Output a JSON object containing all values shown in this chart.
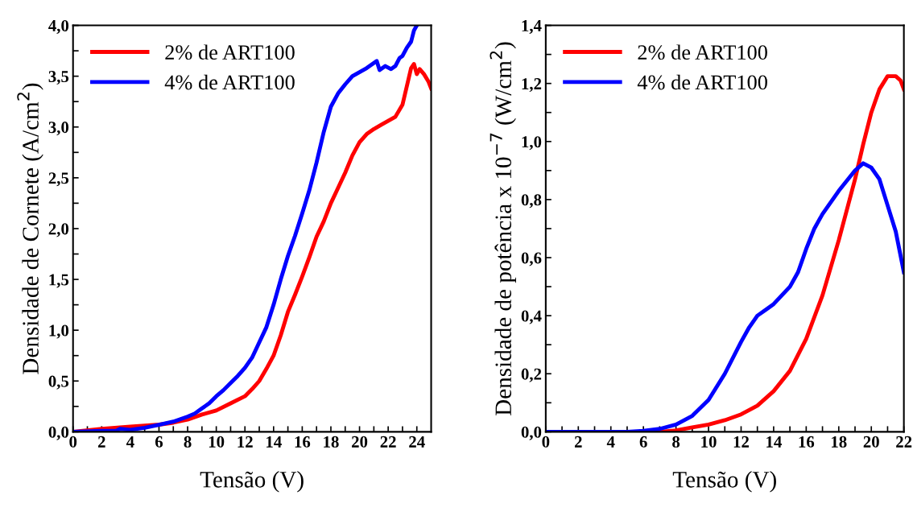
{
  "chart_data": [
    {
      "type": "line",
      "xlabel": "Tensão (V)",
      "ylabel": "Densidade de Cornete (A/cm$^{2}$)",
      "legend": "top left",
      "grid": false,
      "line_style": "solid",
      "marker": "none",
      "xlim": [
        0,
        25
      ],
      "ylim": [
        0,
        4
      ],
      "xticks": [
        0,
        {
          "value": 1,
          "label": null
        },
        2,
        {
          "value": 3,
          "label": null
        },
        4,
        {
          "value": 5,
          "label": null
        },
        6,
        {
          "value": 7,
          "label": null
        },
        8,
        {
          "value": 9,
          "label": null
        },
        10,
        {
          "value": 11,
          "label": null
        },
        12,
        {
          "value": 13,
          "label": null
        },
        14,
        {
          "value": 15,
          "label": null
        },
        16,
        {
          "value": 17,
          "label": null
        },
        18,
        {
          "value": 19,
          "label": null
        },
        20,
        {
          "value": 21,
          "label": null
        },
        22,
        {
          "value": 23,
          "label": null
        },
        24
      ],
      "yticks": [
        {
          "value": 0,
          "label": "0,0"
        },
        {
          "value": 0.25,
          "label": null
        },
        {
          "value": 0.5,
          "label": "0,5"
        },
        {
          "value": 0.75,
          "label": null
        },
        {
          "value": 1,
          "label": "1,0"
        },
        {
          "value": 1.25,
          "label": null
        },
        {
          "value": 1.5,
          "label": "1,5"
        },
        {
          "value": 1.75,
          "label": null
        },
        {
          "value": 2,
          "label": "2,0"
        },
        {
          "value": 2.25,
          "label": null
        },
        {
          "value": 2.5,
          "label": "2,5"
        },
        {
          "value": 2.75,
          "label": null
        },
        {
          "value": 3,
          "label": "3,0"
        },
        {
          "value": 3.25,
          "label": null
        },
        {
          "value": 3.5,
          "label": "3,5"
        },
        {
          "value": 3.75,
          "label": null
        },
        {
          "value": 4,
          "label": "4,0"
        }
      ],
      "series": [
        {
          "name": "2% de ART100",
          "color": "#ff0000",
          "x": [
            0,
            2,
            4,
            6,
            7,
            8,
            9,
            10,
            11,
            12,
            12.5,
            13,
            13.5,
            14,
            14.5,
            15,
            15.5,
            16,
            16.5,
            17,
            17.5,
            18,
            18.5,
            19,
            19.5,
            20,
            20.5,
            21,
            21.5,
            22,
            22.5,
            23,
            23.3,
            23.6,
            23.8,
            24.0,
            24.2,
            24.5,
            24.8,
            25
          ],
          "values": [
            0.0,
            0.03,
            0.05,
            0.07,
            0.09,
            0.12,
            0.17,
            0.21,
            0.28,
            0.35,
            0.42,
            0.5,
            0.62,
            0.75,
            0.95,
            1.18,
            1.35,
            1.53,
            1.72,
            1.92,
            2.07,
            2.25,
            2.4,
            2.55,
            2.72,
            2.85,
            2.93,
            2.98,
            3.02,
            3.06,
            3.1,
            3.22,
            3.4,
            3.58,
            3.62,
            3.52,
            3.57,
            3.52,
            3.45,
            3.38
          ]
        },
        {
          "name": "4% de ART100",
          "color": "#0000ff",
          "x": [
            0,
            2,
            3,
            3.3,
            4,
            5,
            6,
            7,
            8,
            8.5,
            9,
            9.5,
            10,
            10.5,
            11,
            11.5,
            12,
            12.5,
            13,
            13.5,
            14,
            14.5,
            15,
            15.5,
            16,
            16.5,
            17,
            17.5,
            18,
            18.5,
            19,
            19.5,
            20,
            20.5,
            21,
            21.2,
            21.4,
            21.8,
            22.2,
            22.5,
            22.8,
            23,
            23.3,
            23.6,
            23.8,
            24
          ],
          "values": [
            0.0,
            0.01,
            0.01,
            0.03,
            0.02,
            0.04,
            0.07,
            0.1,
            0.15,
            0.18,
            0.23,
            0.28,
            0.35,
            0.41,
            0.48,
            0.55,
            0.63,
            0.73,
            0.88,
            1.03,
            1.25,
            1.5,
            1.73,
            1.93,
            2.15,
            2.38,
            2.65,
            2.95,
            3.2,
            3.33,
            3.42,
            3.5,
            3.54,
            3.58,
            3.63,
            3.65,
            3.56,
            3.6,
            3.57,
            3.6,
            3.68,
            3.7,
            3.78,
            3.84,
            3.95,
            4.0
          ]
        }
      ]
    },
    {
      "type": "line",
      "xlabel": "Tensão (V)",
      "ylabel": "Densidade de potência x 10$^{−7}$ (W/cm$^{2}$)",
      "legend": "top left",
      "grid": false,
      "line_style": "solid",
      "marker": "none",
      "xlim": [
        0,
        22
      ],
      "ylim": [
        0,
        1.4
      ],
      "xticks": [
        0,
        {
          "value": 1,
          "label": null
        },
        2,
        {
          "value": 3,
          "label": null
        },
        4,
        {
          "value": 5,
          "label": null
        },
        6,
        {
          "value": 7,
          "label": null
        },
        8,
        {
          "value": 9,
          "label": null
        },
        10,
        {
          "value": 11,
          "label": null
        },
        12,
        {
          "value": 13,
          "label": null
        },
        14,
        {
          "value": 15,
          "label": null
        },
        16,
        {
          "value": 17,
          "label": null
        },
        18,
        {
          "value": 19,
          "label": null
        },
        20,
        {
          "value": 21,
          "label": null
        },
        22
      ],
      "yticks": [
        {
          "value": 0,
          "label": "0,0"
        },
        {
          "value": 0.1,
          "label": null
        },
        {
          "value": 0.2,
          "label": "0,2"
        },
        {
          "value": 0.3,
          "label": null
        },
        {
          "value": 0.4,
          "label": "0,4"
        },
        {
          "value": 0.5,
          "label": null
        },
        {
          "value": 0.6,
          "label": "0,6"
        },
        {
          "value": 0.7,
          "label": null
        },
        {
          "value": 0.8,
          "label": "0,8"
        },
        {
          "value": 0.9,
          "label": null
        },
        {
          "value": 1.0,
          "label": "1,0"
        },
        {
          "value": 1.1,
          "label": null
        },
        {
          "value": 1.2,
          "label": "1,2"
        },
        {
          "value": 1.3,
          "label": null
        },
        {
          "value": 1.4,
          "label": "1,4"
        }
      ],
      "series": [
        {
          "name": "2% de ART100",
          "color": "#ff0000",
          "x": [
            6,
            7,
            8,
            9,
            10,
            11,
            12,
            13,
            14,
            15,
            16,
            17,
            18,
            19,
            19.5,
            20,
            20.5,
            21,
            21.5,
            21.8,
            22
          ],
          "values": [
            0,
            0,
            0.005,
            0.015,
            0.025,
            0.04,
            0.06,
            0.09,
            0.14,
            0.21,
            0.32,
            0.47,
            0.66,
            0.87,
            0.99,
            1.1,
            1.18,
            1.225,
            1.225,
            1.21,
            1.18
          ]
        },
        {
          "name": "4% de ART100",
          "color": "#0000ff",
          "x": [
            0,
            2,
            4,
            5,
            6,
            7,
            8,
            9,
            10,
            11,
            12,
            12.5,
            13,
            13.5,
            14,
            15,
            15.5,
            16,
            16.5,
            17,
            18,
            19,
            19.5,
            20,
            20.5,
            21,
            21.5,
            22
          ],
          "values": [
            0,
            0,
            0,
            0,
            0.003,
            0.01,
            0.025,
            0.055,
            0.11,
            0.2,
            0.31,
            0.36,
            0.4,
            0.42,
            0.44,
            0.5,
            0.55,
            0.63,
            0.7,
            0.75,
            0.83,
            0.9,
            0.925,
            0.91,
            0.87,
            0.78,
            0.69,
            0.55
          ]
        }
      ]
    }
  ]
}
